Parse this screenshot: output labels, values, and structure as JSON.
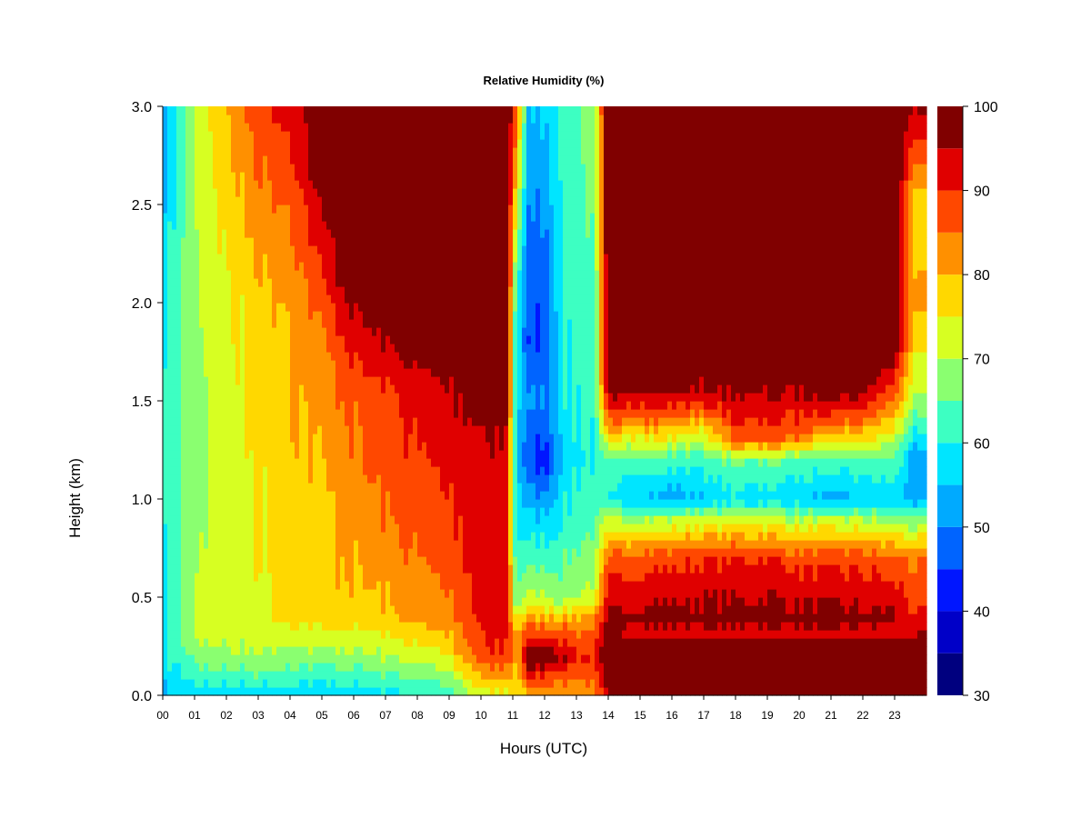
{
  "chart_data": {
    "type": "heatmap",
    "title": "Relative Humidity (%)",
    "xlabel": "Hours (UTC)",
    "ylabel": "Height (km)",
    "x_range": [
      0,
      24
    ],
    "y_range": [
      0,
      3.0
    ],
    "x_ticks": [
      "00",
      "01",
      "02",
      "03",
      "04",
      "05",
      "06",
      "07",
      "08",
      "09",
      "10",
      "11",
      "12",
      "13",
      "14",
      "15",
      "16",
      "17",
      "18",
      "19",
      "20",
      "21",
      "22",
      "23"
    ],
    "y_ticks": [
      "0.0",
      "0.5",
      "1.0",
      "1.5",
      "2.0",
      "2.5",
      "3.0"
    ],
    "colorbar": {
      "range": [
        30,
        100
      ],
      "step": 5,
      "tick_labels": [
        "30",
        "40",
        "50",
        "60",
        "70",
        "80",
        "90",
        "100"
      ],
      "colors": [
        "#00007f",
        "#0000c8",
        "#0016ff",
        "#0064ff",
        "#00aaff",
        "#00e5ff",
        "#3dffc2",
        "#8aff70",
        "#d7ff22",
        "#ffd800",
        "#ff9000",
        "#ff4800",
        "#e00000",
        "#800000"
      ]
    },
    "profiles": [
      {
        "hour": 0.0,
        "rh": [
          [
            0,
            55
          ],
          [
            0.1,
            57
          ],
          [
            0.3,
            60
          ],
          [
            1.5,
            62
          ],
          [
            3.0,
            52
          ]
        ]
      },
      {
        "hour": 1.0,
        "rh": [
          [
            0,
            55
          ],
          [
            0.1,
            62
          ],
          [
            0.3,
            70
          ],
          [
            1.0,
            68
          ],
          [
            2.0,
            68
          ],
          [
            3.0,
            70
          ]
        ]
      },
      {
        "hour": 2.0,
        "rh": [
          [
            0,
            57
          ],
          [
            0.15,
            66
          ],
          [
            0.3,
            72
          ],
          [
            1.0,
            72
          ],
          [
            2.0,
            74
          ],
          [
            3.0,
            80
          ]
        ]
      },
      {
        "hour": 3.0,
        "rh": [
          [
            0,
            57
          ],
          [
            0.15,
            67
          ],
          [
            0.3,
            73
          ],
          [
            1.0,
            75
          ],
          [
            2.0,
            78
          ],
          [
            3.0,
            88
          ]
        ]
      },
      {
        "hour": 4.0,
        "rh": [
          [
            0,
            57
          ],
          [
            0.2,
            67
          ],
          [
            0.4,
            76
          ],
          [
            1.0,
            78
          ],
          [
            2.0,
            80
          ],
          [
            2.6,
            86
          ],
          [
            3.0,
            92
          ]
        ]
      },
      {
        "hour": 5.0,
        "rh": [
          [
            0,
            57
          ],
          [
            0.2,
            68
          ],
          [
            0.4,
            78
          ],
          [
            1.0,
            79
          ],
          [
            1.8,
            84
          ],
          [
            2.7,
            100
          ],
          [
            3.0,
            100
          ]
        ]
      },
      {
        "hour": 6.0,
        "rh": [
          [
            0,
            57
          ],
          [
            0.2,
            68
          ],
          [
            0.4,
            78
          ],
          [
            1.0,
            83
          ],
          [
            1.5,
            86
          ],
          [
            2.2,
            100
          ],
          [
            3.0,
            100
          ]
        ]
      },
      {
        "hour": 7.0,
        "rh": [
          [
            0,
            58
          ],
          [
            0.2,
            70
          ],
          [
            0.4,
            79
          ],
          [
            1.0,
            86
          ],
          [
            1.5,
            88
          ],
          [
            2.0,
            100
          ],
          [
            3.0,
            100
          ]
        ]
      },
      {
        "hour": 8.0,
        "rh": [
          [
            0,
            60
          ],
          [
            0.2,
            72
          ],
          [
            0.4,
            82
          ],
          [
            1.0,
            88
          ],
          [
            1.5,
            92
          ],
          [
            1.9,
            100
          ],
          [
            3.0,
            100
          ]
        ]
      },
      {
        "hour": 9.0,
        "rh": [
          [
            0,
            62
          ],
          [
            0.2,
            75
          ],
          [
            0.4,
            84
          ],
          [
            1.0,
            90
          ],
          [
            1.5,
            94
          ],
          [
            1.9,
            100
          ],
          [
            3.0,
            100
          ]
        ]
      },
      {
        "hour": 10.0,
        "rh": [
          [
            0,
            72
          ],
          [
            0.2,
            88
          ],
          [
            0.4,
            91
          ],
          [
            1.0,
            92
          ],
          [
            1.5,
            96
          ],
          [
            2.0,
            100
          ],
          [
            3.0,
            100
          ]
        ]
      },
      {
        "hour": 10.8,
        "rh": [
          [
            0,
            74
          ],
          [
            0.2,
            90
          ],
          [
            0.4,
            92
          ],
          [
            1.0,
            92
          ],
          [
            1.5,
            97
          ],
          [
            2.0,
            100
          ],
          [
            3.0,
            100
          ]
        ]
      },
      {
        "hour": 11.1,
        "rh": [
          [
            0,
            76
          ],
          [
            0.3,
            82
          ],
          [
            0.5,
            66
          ],
          [
            1.0,
            58
          ],
          [
            1.5,
            58
          ],
          [
            2.0,
            62
          ],
          [
            3.0,
            90
          ]
        ]
      },
      {
        "hour": 11.5,
        "rh": [
          [
            0,
            80
          ],
          [
            0.2,
            100
          ],
          [
            0.38,
            82
          ],
          [
            0.5,
            70
          ],
          [
            0.9,
            56
          ],
          [
            1.2,
            44
          ],
          [
            1.5,
            50
          ],
          [
            1.8,
            44
          ],
          [
            2.2,
            46
          ],
          [
            3.0,
            54
          ]
        ]
      },
      {
        "hour": 12.0,
        "rh": [
          [
            0,
            82
          ],
          [
            0.2,
            100
          ],
          [
            0.38,
            82
          ],
          [
            0.5,
            70
          ],
          [
            0.9,
            56
          ],
          [
            1.2,
            42
          ],
          [
            1.5,
            50
          ],
          [
            1.8,
            46
          ],
          [
            2.2,
            48
          ],
          [
            3.0,
            56
          ]
        ]
      },
      {
        "hour": 12.5,
        "rh": [
          [
            0,
            80
          ],
          [
            0.2,
            96
          ],
          [
            0.38,
            82
          ],
          [
            0.5,
            68
          ],
          [
            0.9,
            60
          ],
          [
            1.2,
            55
          ],
          [
            1.5,
            58
          ],
          [
            2.0,
            60
          ],
          [
            3.0,
            62
          ]
        ]
      },
      {
        "hour": 13.0,
        "rh": [
          [
            0,
            80
          ],
          [
            0.2,
            92
          ],
          [
            0.38,
            82
          ],
          [
            0.5,
            70
          ],
          [
            0.9,
            62
          ],
          [
            1.2,
            60
          ],
          [
            2.0,
            62
          ],
          [
            3.0,
            64
          ]
        ]
      },
      {
        "hour": 13.6,
        "rh": [
          [
            0,
            84
          ],
          [
            0.2,
            90
          ],
          [
            0.38,
            84
          ],
          [
            0.5,
            72
          ],
          [
            0.9,
            64
          ],
          [
            1.2,
            60
          ],
          [
            2.0,
            64
          ],
          [
            3.0,
            70
          ]
        ]
      },
      {
        "hour": 14.0,
        "rh": [
          [
            0,
            92
          ],
          [
            0.1,
            100
          ],
          [
            0.25,
            100
          ],
          [
            0.4,
            96
          ],
          [
            0.7,
            86
          ],
          [
            0.9,
            70
          ],
          [
            1.0,
            58
          ],
          [
            1.2,
            62
          ],
          [
            1.4,
            84
          ],
          [
            1.6,
            100
          ],
          [
            3.0,
            100
          ]
        ]
      },
      {
        "hour": 15.0,
        "rh": [
          [
            0,
            100
          ],
          [
            0.25,
            100
          ],
          [
            0.3,
            92
          ],
          [
            0.4,
            97
          ],
          [
            0.7,
            88
          ],
          [
            0.9,
            70
          ],
          [
            1.0,
            56
          ],
          [
            1.2,
            64
          ],
          [
            1.4,
            86
          ],
          [
            1.6,
            100
          ],
          [
            3.0,
            100
          ]
        ]
      },
      {
        "hour": 16.0,
        "rh": [
          [
            0,
            100
          ],
          [
            0.25,
            100
          ],
          [
            0.3,
            92
          ],
          [
            0.4,
            97
          ],
          [
            0.7,
            88
          ],
          [
            0.9,
            70
          ],
          [
            1.0,
            52
          ],
          [
            1.2,
            62
          ],
          [
            1.4,
            84
          ],
          [
            1.6,
            100
          ],
          [
            2.2,
            96
          ],
          [
            3.0,
            100
          ]
        ]
      },
      {
        "hour": 17.0,
        "rh": [
          [
            0,
            100
          ],
          [
            0.25,
            100
          ],
          [
            0.3,
            92
          ],
          [
            0.4,
            97
          ],
          [
            0.7,
            90
          ],
          [
            0.9,
            72
          ],
          [
            1.0,
            55
          ],
          [
            1.2,
            62
          ],
          [
            1.4,
            80
          ],
          [
            1.5,
            92
          ],
          [
            1.7,
            100
          ],
          [
            3.0,
            100
          ]
        ]
      },
      {
        "hour": 18.0,
        "rh": [
          [
            0,
            100
          ],
          [
            0.25,
            100
          ],
          [
            0.3,
            92
          ],
          [
            0.4,
            97
          ],
          [
            0.7,
            90
          ],
          [
            0.9,
            72
          ],
          [
            1.0,
            58
          ],
          [
            1.2,
            66
          ],
          [
            1.3,
            86
          ],
          [
            1.5,
            94
          ],
          [
            1.7,
            100
          ],
          [
            3.0,
            100
          ]
        ]
      },
      {
        "hour": 19.0,
        "rh": [
          [
            0,
            100
          ],
          [
            0.25,
            100
          ],
          [
            0.3,
            92
          ],
          [
            0.4,
            98
          ],
          [
            0.7,
            90
          ],
          [
            0.9,
            72
          ],
          [
            1.0,
            57
          ],
          [
            1.2,
            66
          ],
          [
            1.3,
            86
          ],
          [
            1.5,
            94
          ],
          [
            1.7,
            100
          ],
          [
            3.0,
            100
          ]
        ]
      },
      {
        "hour": 20.0,
        "rh": [
          [
            0,
            100
          ],
          [
            0.25,
            100
          ],
          [
            0.3,
            92
          ],
          [
            0.4,
            97
          ],
          [
            0.7,
            88
          ],
          [
            0.9,
            70
          ],
          [
            1.0,
            56
          ],
          [
            1.2,
            64
          ],
          [
            1.3,
            84
          ],
          [
            1.5,
            94
          ],
          [
            1.7,
            100
          ],
          [
            3.0,
            100
          ]
        ]
      },
      {
        "hour": 21.0,
        "rh": [
          [
            0,
            100
          ],
          [
            0.25,
            100
          ],
          [
            0.3,
            92
          ],
          [
            0.4,
            97
          ],
          [
            0.7,
            88
          ],
          [
            0.9,
            70
          ],
          [
            1.0,
            52
          ],
          [
            1.2,
            62
          ],
          [
            1.4,
            86
          ],
          [
            1.6,
            100
          ],
          [
            2.2,
            94
          ],
          [
            3.0,
            100
          ]
        ]
      },
      {
        "hour": 22.0,
        "rh": [
          [
            0,
            100
          ],
          [
            0.25,
            100
          ],
          [
            0.3,
            92
          ],
          [
            0.4,
            96
          ],
          [
            0.7,
            88
          ],
          [
            0.9,
            70
          ],
          [
            1.0,
            56
          ],
          [
            1.2,
            64
          ],
          [
            1.4,
            86
          ],
          [
            1.6,
            100
          ],
          [
            3.0,
            100
          ]
        ]
      },
      {
        "hour": 23.0,
        "rh": [
          [
            0,
            100
          ],
          [
            0.25,
            100
          ],
          [
            0.3,
            92
          ],
          [
            0.4,
            96
          ],
          [
            0.7,
            86
          ],
          [
            0.9,
            68
          ],
          [
            1.0,
            56
          ],
          [
            1.2,
            64
          ],
          [
            1.5,
            84
          ],
          [
            1.8,
            100
          ],
          [
            3.0,
            100
          ]
        ]
      },
      {
        "hour": 23.7,
        "rh": [
          [
            0,
            100
          ],
          [
            0.25,
            100
          ],
          [
            0.4,
            90
          ],
          [
            0.7,
            84
          ],
          [
            0.9,
            66
          ],
          [
            1.0,
            52
          ],
          [
            1.2,
            50
          ],
          [
            1.5,
            68
          ],
          [
            2.0,
            80
          ],
          [
            2.5,
            76
          ],
          [
            3.0,
            96
          ]
        ]
      }
    ]
  }
}
